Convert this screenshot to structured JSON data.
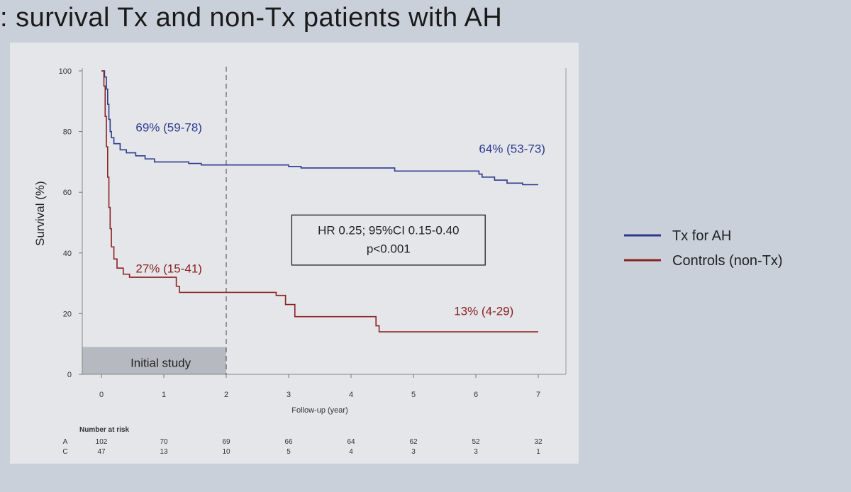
{
  "title": ": survival Tx and non-Tx patients with AH",
  "colors": {
    "tx": "#2d3a8c",
    "controls": "#8b2222",
    "background": "#c9d0da",
    "plot_bg": "#e4e6ea",
    "initial_box": "#b6b9bf"
  },
  "chart_data": {
    "type": "line",
    "xlabel": "Follow-up (year)",
    "ylabel": "Survival (%)",
    "xlim": [
      0,
      7
    ],
    "ylim": [
      0,
      100
    ],
    "xticks": [
      0,
      1,
      2,
      3,
      4,
      5,
      6,
      7
    ],
    "yticks": [
      0,
      20,
      40,
      60,
      80,
      100
    ],
    "cutoff_x": 2,
    "initial_study_label": "Initial study",
    "hr_box": {
      "line1": "HR 0.25; 95%CI 0.15-0.40",
      "line2": "p<0.001"
    },
    "series": [
      {
        "key": "tx",
        "name": "Tx for AH",
        "annotations": [
          {
            "text": "69% (59-78)",
            "x": 0.55,
            "y": 80
          },
          {
            "text": "64% (53-73)",
            "x": 6.05,
            "y": 73
          }
        ],
        "steps": [
          [
            0,
            100
          ],
          [
            0.05,
            98
          ],
          [
            0.08,
            94
          ],
          [
            0.1,
            89
          ],
          [
            0.12,
            84
          ],
          [
            0.14,
            80
          ],
          [
            0.16,
            78
          ],
          [
            0.2,
            76
          ],
          [
            0.3,
            74
          ],
          [
            0.4,
            73
          ],
          [
            0.55,
            72
          ],
          [
            0.7,
            71
          ],
          [
            0.85,
            70
          ],
          [
            1.4,
            69.5
          ],
          [
            1.6,
            69
          ],
          [
            3.0,
            68.5
          ],
          [
            3.2,
            68
          ],
          [
            4.7,
            67
          ],
          [
            6.05,
            66
          ],
          [
            6.1,
            65
          ],
          [
            6.3,
            64
          ],
          [
            6.5,
            63
          ],
          [
            6.75,
            62.5
          ],
          [
            7.0,
            62.5
          ]
        ]
      },
      {
        "key": "controls",
        "name": "Controls (non-Tx)",
        "annotations": [
          {
            "text": "27% (15-41)",
            "x": 0.55,
            "y": 33.5
          },
          {
            "text": "13% (4-29)",
            "x": 5.65,
            "y": 19.5
          }
        ],
        "steps": [
          [
            0,
            100
          ],
          [
            0.04,
            95
          ],
          [
            0.06,
            85
          ],
          [
            0.08,
            75
          ],
          [
            0.1,
            65
          ],
          [
            0.12,
            55
          ],
          [
            0.14,
            48
          ],
          [
            0.16,
            42
          ],
          [
            0.2,
            38
          ],
          [
            0.25,
            35
          ],
          [
            0.35,
            33
          ],
          [
            0.45,
            32
          ],
          [
            1.2,
            29
          ],
          [
            1.25,
            27
          ],
          [
            2.8,
            26
          ],
          [
            2.95,
            23
          ],
          [
            3.1,
            19
          ],
          [
            4.4,
            16
          ],
          [
            4.45,
            14
          ],
          [
            7.0,
            14
          ]
        ]
      }
    ],
    "risk_table": {
      "title": "Number at risk",
      "rows": [
        {
          "label": "A",
          "values": [
            "102",
            "70",
            "69",
            "66",
            "64",
            "62",
            "52",
            "32"
          ]
        },
        {
          "label": "C",
          "values": [
            "47",
            "13",
            "10",
            "5",
            "4",
            "3",
            "3",
            "1"
          ]
        }
      ]
    }
  }
}
